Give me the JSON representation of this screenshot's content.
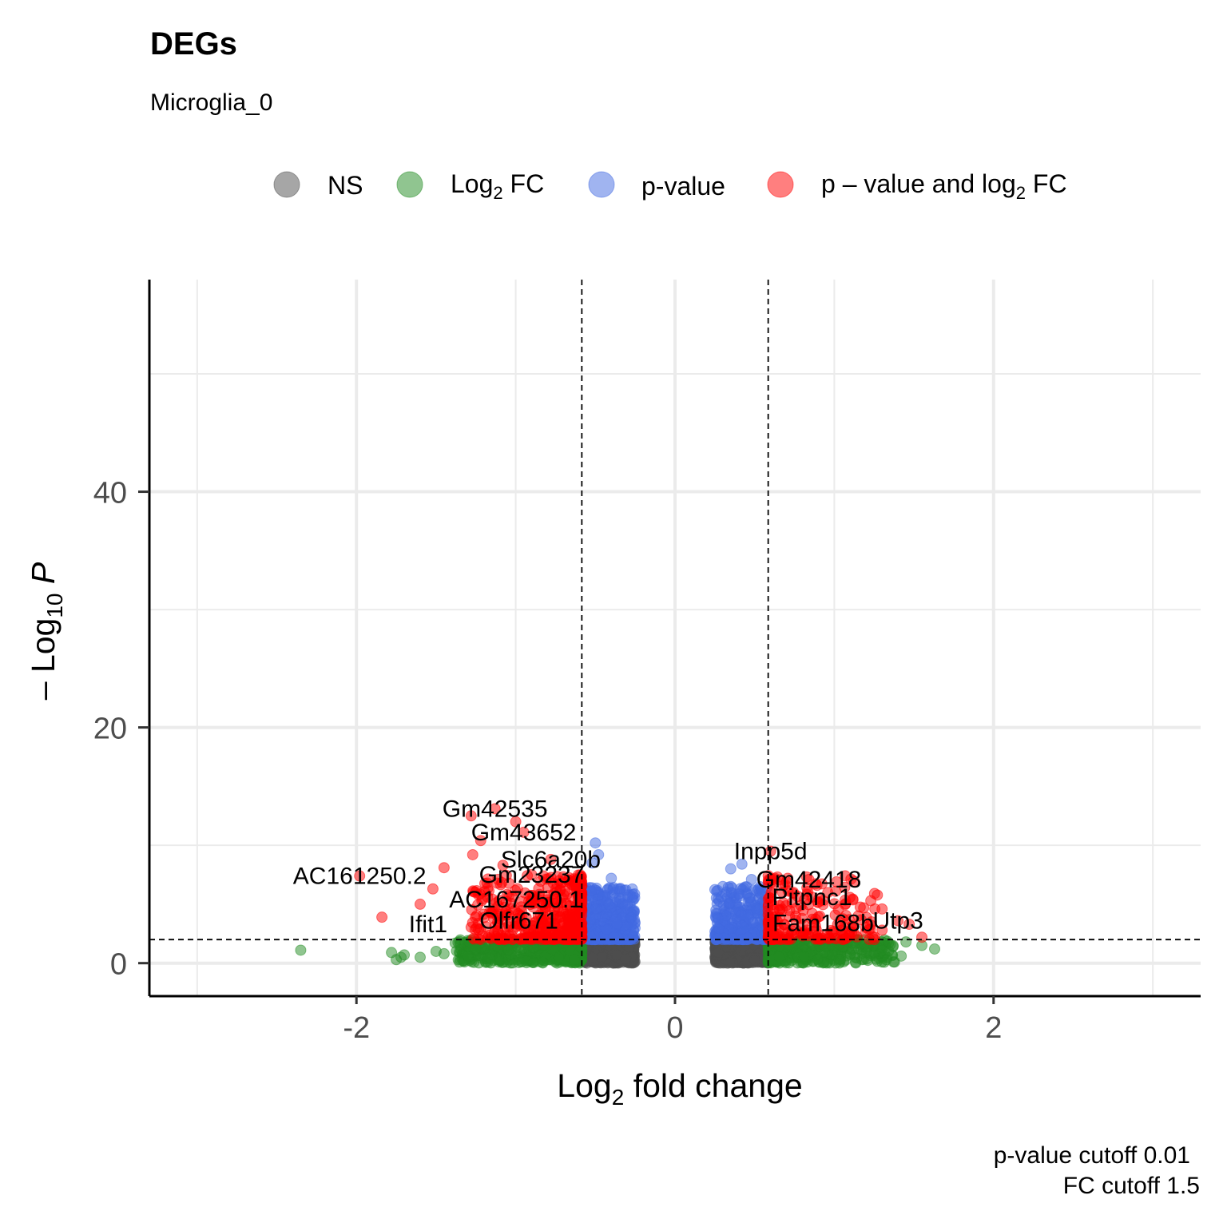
{
  "title": "DEGs",
  "subtitle": "Microglia_0",
  "caption": {
    "line1": "p-value cutoff  0.01",
    "line2": "FC cutoff  1.5"
  },
  "legend": [
    {
      "key": "ns",
      "label": "NS",
      "color": "#4D4D4D"
    },
    {
      "key": "fc",
      "label_main": "Log",
      "label_sub": "2",
      "label_rest": " FC",
      "color": "#228B22"
    },
    {
      "key": "p",
      "label": "p-value",
      "color": "#4169E1"
    },
    {
      "key": "pfc",
      "label_main": "p – value and log",
      "label_sub": "2",
      "label_rest": " FC",
      "color": "#FF0000"
    }
  ],
  "axes": {
    "x": {
      "title_main": "Log",
      "title_sub": "2",
      "title_rest": " fold change",
      "ticks": [
        "-2",
        "0",
        "2"
      ],
      "tick_values": [
        -2,
        0,
        2
      ],
      "range": [
        -3.3,
        3.3
      ]
    },
    "y": {
      "title_main": "– Log",
      "title_sub": "10",
      "title_rest": " P",
      "ticks": [
        "0",
        "20",
        "40"
      ],
      "tick_values": [
        0,
        20,
        40
      ],
      "range": [
        -2.8,
        58
      ]
    }
  },
  "chart_data": {
    "type": "scatter",
    "title": "DEGs",
    "subtitle": "Microglia_0",
    "xlabel": "Log2 fold change",
    "ylabel": "-Log10 P",
    "xlim": [
      -3.3,
      3.3
    ],
    "ylim": [
      -2.8,
      58
    ],
    "grid": true,
    "legend_position": "top",
    "cutoffs": {
      "fc_log2": [
        -0.585,
        0.585
      ],
      "neg_log10_p": 2
    },
    "series": [
      {
        "name": "NS",
        "color": "#4D4D4D",
        "x_range_neg": [
          -0.59,
          -0.25
        ],
        "x_range_pos": [
          0.25,
          0.59
        ],
        "y_range": [
          0,
          2
        ]
      },
      {
        "name": "Log2 FC",
        "color": "#228B22",
        "points": [
          [
            -2.35,
            1.1
          ],
          [
            -1.78,
            0.9
          ],
          [
            -1.72,
            0.5
          ],
          [
            -1.75,
            0.3
          ],
          [
            -1.7,
            0.7
          ],
          [
            -1.6,
            0.5
          ],
          [
            -1.5,
            1.0
          ],
          [
            -1.38,
            1.7
          ],
          [
            -1.25,
            1.2
          ],
          [
            -1.45,
            0.8
          ],
          [
            -1.3,
            0.6
          ],
          [
            1.55,
            1.5
          ],
          [
            1.63,
            1.2
          ],
          [
            1.45,
            1.8
          ],
          [
            1.42,
            0.6
          ],
          [
            1.3,
            1.1
          ],
          [
            1.2,
            0.9
          ]
        ]
      },
      {
        "name": "p-value",
        "color": "#4169E1",
        "points": [
          [
            -0.5,
            10.2
          ],
          [
            -0.48,
            9.2
          ],
          [
            -0.52,
            8.5
          ],
          [
            -0.4,
            7.2
          ],
          [
            -0.35,
            5.5
          ],
          [
            0.35,
            8.0
          ],
          [
            0.42,
            8.4
          ],
          [
            0.3,
            6.5
          ],
          [
            0.48,
            7.1
          ],
          [
            0.4,
            5.9
          ]
        ]
      },
      {
        "name": "p-value and log2 FC",
        "color": "#FF0000",
        "points": [
          [
            -1.28,
            12.5
          ],
          [
            -1.13,
            13.1
          ],
          [
            -1.0,
            12.0
          ],
          [
            -0.95,
            11.1
          ],
          [
            -1.22,
            10.4
          ],
          [
            -1.27,
            9.2
          ],
          [
            -1.08,
            8.3
          ],
          [
            -1.45,
            8.1
          ],
          [
            -1.98,
            7.4
          ],
          [
            -1.52,
            6.3
          ],
          [
            -1.6,
            5.0
          ],
          [
            -1.84,
            3.9
          ],
          [
            -1.18,
            6.8
          ],
          [
            -0.9,
            7.5
          ],
          [
            -0.78,
            8.8
          ],
          [
            0.6,
            9.5
          ],
          [
            0.7,
            6.9
          ],
          [
            0.84,
            7.1
          ],
          [
            0.86,
            5.6
          ],
          [
            0.93,
            5.3
          ],
          [
            1.15,
            4.0
          ],
          [
            1.3,
            4.6
          ],
          [
            1.4,
            3.6
          ],
          [
            1.47,
            3.3
          ],
          [
            1.55,
            2.2
          ],
          [
            1.3,
            2.8
          ]
        ]
      }
    ],
    "labels": [
      {
        "text": "Gm42535",
        "x": -1.13,
        "y": 13.1
      },
      {
        "text": "Gm43652",
        "x": -0.95,
        "y": 11.1
      },
      {
        "text": "Slc6a20b",
        "x": -0.78,
        "y": 8.8
      },
      {
        "text": "AC161250.2",
        "x": -1.98,
        "y": 7.4
      },
      {
        "text": "Gm23237",
        "x": -0.9,
        "y": 7.5
      },
      {
        "text": "AC167250.1",
        "x": -1.0,
        "y": 5.4
      },
      {
        "text": "Ifit1",
        "x": -1.55,
        "y": 3.3
      },
      {
        "text": "Olfr671",
        "x": -0.98,
        "y": 3.6
      },
      {
        "text": "Inpp5d",
        "x": 0.6,
        "y": 9.5
      },
      {
        "text": "Gm42418",
        "x": 0.84,
        "y": 7.1
      },
      {
        "text": "Pitpnc1",
        "x": 0.86,
        "y": 5.6
      },
      {
        "text": "Fam168b",
        "x": 0.93,
        "y": 3.4
      },
      {
        "text": "Utp3",
        "x": 1.4,
        "y": 3.6
      }
    ]
  }
}
